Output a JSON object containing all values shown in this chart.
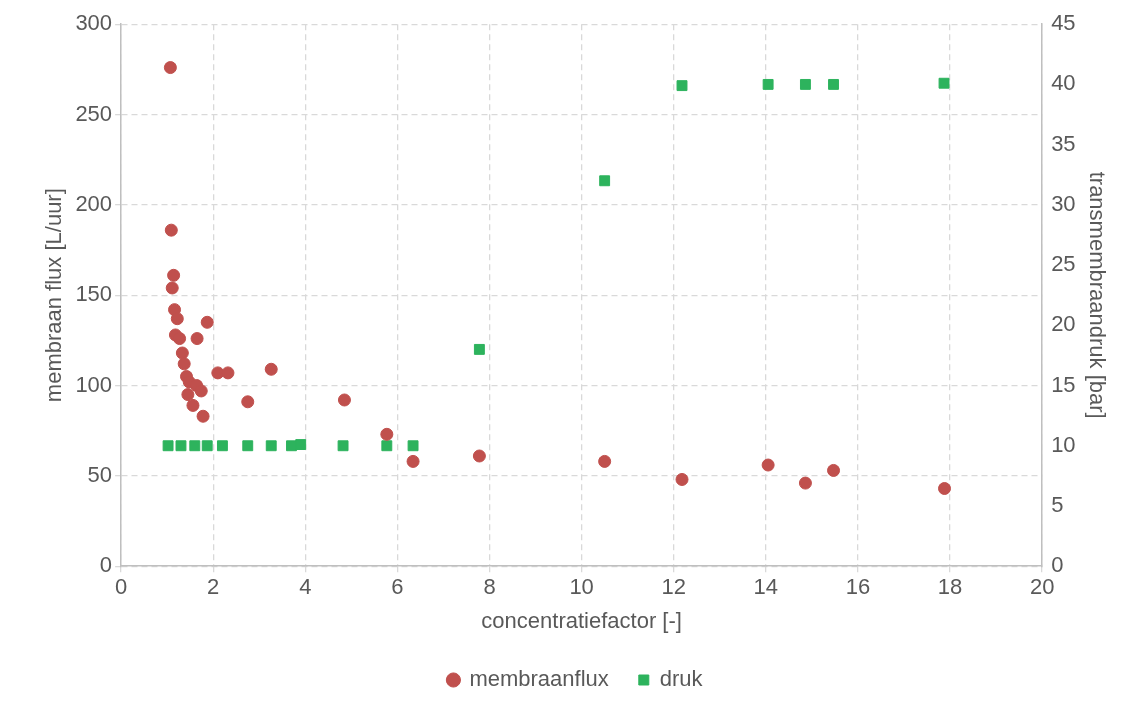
{
  "chart_data": {
    "type": "scatter",
    "xlabel": "concentratiefactor [-]",
    "ylabel": "membraan flux [L/uur]",
    "y2label": "transmembraandruk [bar]",
    "xlim": [
      0,
      20
    ],
    "xticks": [
      0,
      2,
      4,
      6,
      8,
      10,
      12,
      14,
      16,
      18,
      20
    ],
    "ylim": [
      0,
      300
    ],
    "yticks": [
      0,
      50,
      100,
      150,
      200,
      250,
      300
    ],
    "y2lim": [
      0,
      45
    ],
    "y2ticks": [
      0,
      5,
      10,
      15,
      20,
      25,
      30,
      35,
      40,
      45
    ],
    "grid": true,
    "legend": "bottom",
    "series": [
      {
        "name": "membraanflux",
        "color": "#c0504d",
        "marker": "circle",
        "x": [
          1.07,
          1.09,
          1.14,
          1.11,
          1.16,
          1.22,
          1.18,
          1.27,
          1.87,
          1.65,
          1.33,
          1.37,
          1.42,
          1.48,
          1.64,
          1.74,
          1.45,
          1.56,
          1.78,
          2.1,
          2.32,
          3.26,
          2.75,
          4.85,
          5.77,
          6.34,
          7.78,
          10.5,
          12.18,
          14.05,
          14.86,
          15.47,
          17.88
        ],
        "values": [
          276,
          186,
          161,
          154,
          142,
          137,
          128,
          126,
          135,
          126,
          118,
          112,
          105,
          102,
          100,
          97,
          95,
          89,
          83,
          107,
          107,
          109,
          91,
          92,
          73,
          58,
          61,
          58,
          48,
          56,
          46,
          53,
          43
        ]
      },
      {
        "name": "druk",
        "color": "#2db35d",
        "marker": "square",
        "axis": "y2",
        "x": [
          1.02,
          1.3,
          1.6,
          1.87,
          2.2,
          2.75,
          3.26,
          3.7,
          3.9,
          4.82,
          5.77,
          6.34,
          7.78,
          10.5,
          12.18,
          14.05,
          14.86,
          15.47,
          17.87
        ],
        "values": [
          10,
          10,
          10,
          10,
          10,
          10,
          10,
          10,
          10.1,
          10,
          10,
          10,
          18,
          32,
          39.9,
          40,
          40,
          40,
          40.1
        ]
      }
    ]
  }
}
